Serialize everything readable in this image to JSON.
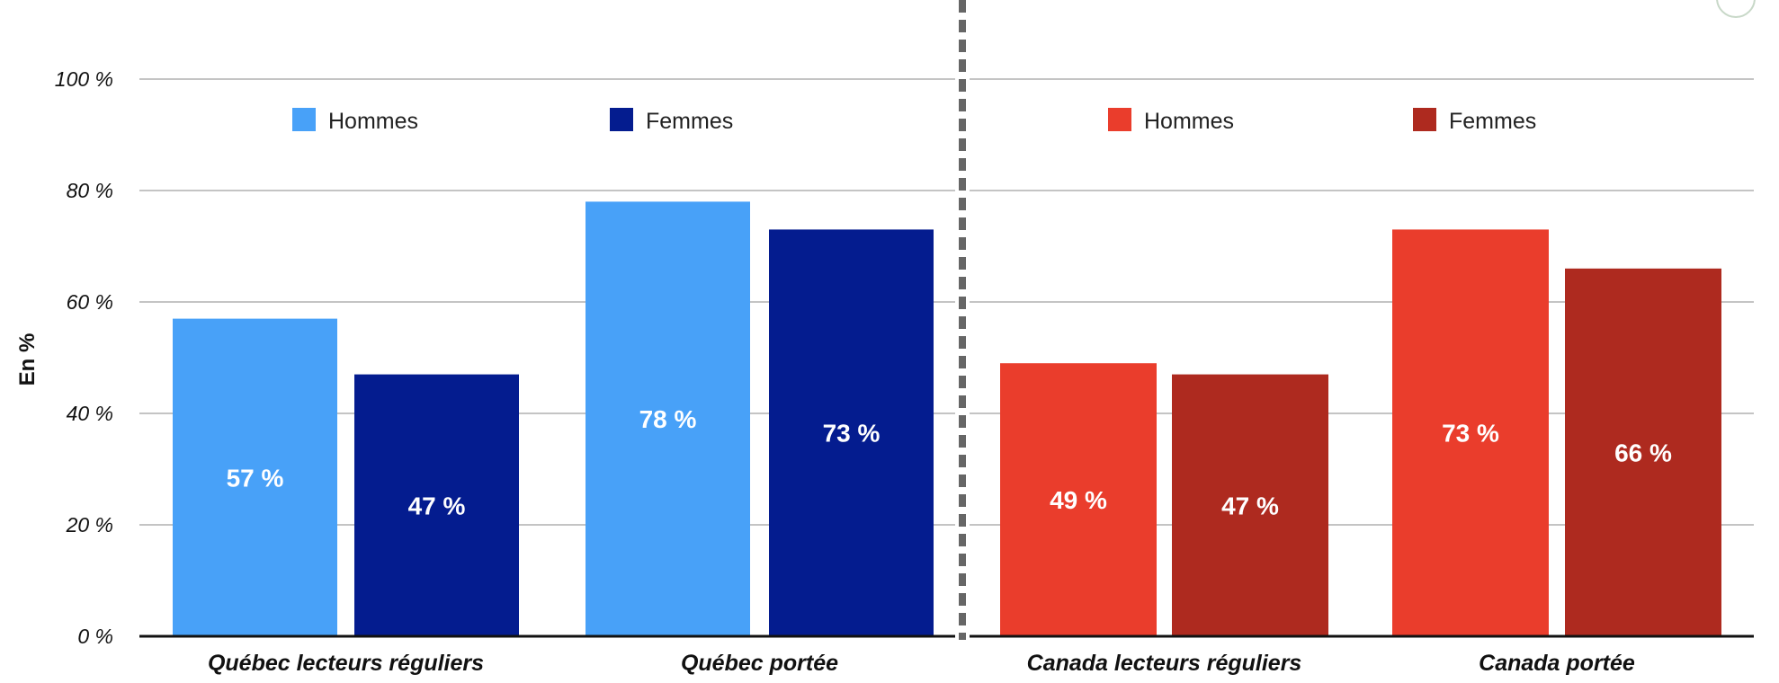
{
  "chart_data": {
    "type": "bar",
    "ylabel": "En %",
    "ylim": [
      0,
      100
    ],
    "yticks": [
      "0 %",
      "20 %",
      "40 %",
      "60 %",
      "80 %",
      "100 %"
    ],
    "grid": true,
    "panels": [
      {
        "categories": [
          "Québec lecteurs réguliers",
          "Québec portée"
        ],
        "legend": [
          "Hommes",
          "Femmes"
        ],
        "colors": [
          "#48a1f8",
          "#041c8f"
        ],
        "series": [
          {
            "name": "Hommes",
            "values": [
              57,
              78
            ],
            "labels": [
              "57 %",
              "78 %"
            ]
          },
          {
            "name": "Femmes",
            "values": [
              47,
              73
            ],
            "labels": [
              "47 %",
              "73 %"
            ]
          }
        ]
      },
      {
        "categories": [
          "Canada lecteurs réguliers",
          "Canada portée"
        ],
        "legend": [
          "Hommes",
          "Femmes"
        ],
        "colors": [
          "#ea3d2c",
          "#ae2a1f"
        ],
        "series": [
          {
            "name": "Hommes",
            "values": [
              49,
              73
            ],
            "labels": [
              "49 %",
              "73 %"
            ]
          },
          {
            "name": "Femmes",
            "values": [
              47,
              66
            ],
            "labels": [
              "47 %",
              "66 %"
            ]
          }
        ]
      }
    ]
  }
}
